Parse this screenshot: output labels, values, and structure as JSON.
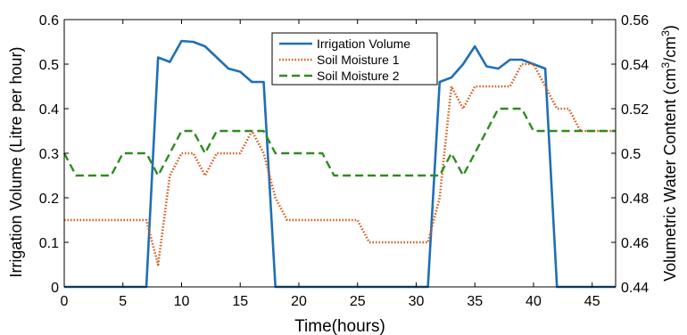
{
  "chart_data": {
    "type": "line",
    "xlabel": "Time(hours)",
    "ylabel_left": "Irrigation Volume (Litre per hour)",
    "ylabel_right_parts": [
      "Volumetric Water Content (cm",
      "3",
      "/cm",
      "3",
      ")"
    ],
    "xlim": [
      0,
      47
    ],
    "xticks": [
      0,
      5,
      10,
      15,
      20,
      25,
      30,
      35,
      40,
      45
    ],
    "ylim_left": [
      0,
      0.6
    ],
    "yticks_left": [
      "0",
      "0.1",
      "0.2",
      "0.3",
      "0.4",
      "0.5",
      "0.6"
    ],
    "ylim_right": [
      0.44,
      0.56
    ],
    "yticks_right": [
      "0.44",
      "0.46",
      "0.48",
      "0.5",
      "0.52",
      "0.54",
      "0.56"
    ],
    "grid": false,
    "legend_position": "top-center",
    "series": [
      {
        "name": "Irrigation Volume",
        "axis": "left",
        "color": "#1f6fb5",
        "style": "solid",
        "x": [
          0,
          7,
          8,
          9,
          10,
          11,
          12,
          13,
          14,
          15,
          16,
          17,
          18,
          19,
          30,
          31,
          32,
          33,
          34,
          35,
          36,
          37,
          38,
          39,
          40,
          41,
          42,
          47
        ],
        "y": [
          0,
          0,
          0.515,
          0.505,
          0.552,
          0.55,
          0.54,
          0.515,
          0.49,
          0.483,
          0.46,
          0.46,
          0,
          0,
          0,
          0,
          0.46,
          0.47,
          0.5,
          0.54,
          0.495,
          0.49,
          0.51,
          0.51,
          0.5,
          0.49,
          0,
          0
        ]
      },
      {
        "name": "Soil Moisture 1",
        "axis": "right",
        "color": "#d65a1c",
        "style": "dotted",
        "x": [
          0,
          7,
          8,
          9,
          10,
          11,
          12,
          13,
          14,
          15,
          16,
          17,
          18,
          19,
          20,
          21,
          22,
          23,
          24,
          25,
          26,
          27,
          28,
          29,
          30,
          31,
          32,
          33,
          34,
          35,
          36,
          37,
          38,
          39,
          40,
          41,
          42,
          43,
          44,
          45,
          46,
          47
        ],
        "y": [
          0.47,
          0.47,
          0.45,
          0.49,
          0.5,
          0.5,
          0.49,
          0.5,
          0.5,
          0.5,
          0.51,
          0.5,
          0.48,
          0.47,
          0.47,
          0.47,
          0.47,
          0.47,
          0.47,
          0.47,
          0.46,
          0.46,
          0.46,
          0.46,
          0.46,
          0.46,
          0.48,
          0.53,
          0.52,
          0.53,
          0.53,
          0.53,
          0.53,
          0.54,
          0.54,
          0.53,
          0.52,
          0.52,
          0.51,
          0.51,
          0.51,
          0.51
        ]
      },
      {
        "name": "Soil Moisture 2",
        "axis": "right",
        "color": "#2e8b1f",
        "style": "dashed",
        "x": [
          0,
          1,
          2,
          3,
          4,
          5,
          6,
          7,
          8,
          9,
          10,
          11,
          12,
          13,
          14,
          15,
          16,
          17,
          18,
          19,
          20,
          21,
          22,
          23,
          24,
          25,
          26,
          27,
          28,
          29,
          30,
          31,
          32,
          33,
          34,
          35,
          36,
          37,
          38,
          39,
          40,
          41,
          42,
          43,
          44,
          45,
          46,
          47
        ],
        "y": [
          0.5,
          0.49,
          0.49,
          0.49,
          0.49,
          0.5,
          0.5,
          0.5,
          0.49,
          0.5,
          0.51,
          0.51,
          0.5,
          0.51,
          0.51,
          0.51,
          0.51,
          0.51,
          0.5,
          0.5,
          0.5,
          0.5,
          0.5,
          0.49,
          0.49,
          0.49,
          0.49,
          0.49,
          0.49,
          0.49,
          0.49,
          0.49,
          0.49,
          0.5,
          0.49,
          0.5,
          0.51,
          0.52,
          0.52,
          0.52,
          0.51,
          0.51,
          0.51,
          0.51,
          0.51,
          0.51,
          0.51,
          0.51
        ]
      }
    ]
  }
}
